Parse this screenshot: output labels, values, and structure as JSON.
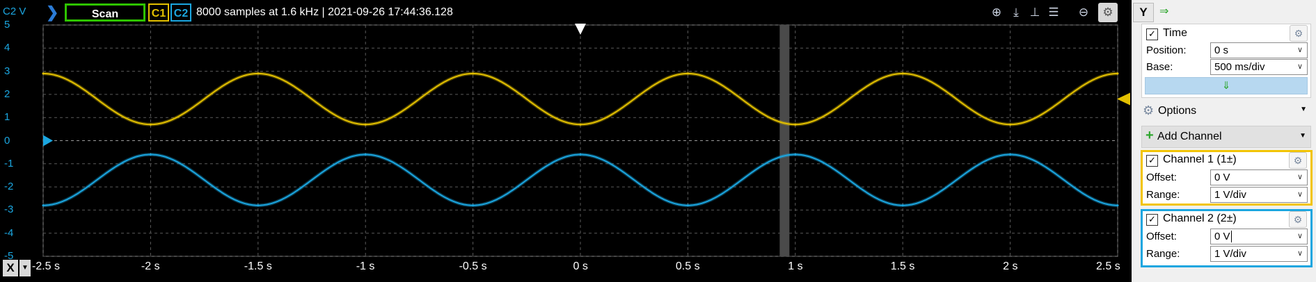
{
  "toolbar": {
    "y_axis_channel_label": "C2 V",
    "mode_button": "Scan",
    "channel1_chip": "C1",
    "channel2_chip": "C2",
    "status_text": "8000 samples at 1.6 kHz | 2021-09-26 17:44:36.128",
    "icons": [
      "zoom-in-icon",
      "cursor-down-icon",
      "cursor-horizontal-icon",
      "cursor-measure-icon",
      "zoom-out-icon",
      "settings-icon"
    ]
  },
  "x_axis": {
    "button_label": "X",
    "ticks": [
      "-2.5 s",
      "-2 s",
      "-1.5 s",
      "-1 s",
      "-0.5 s",
      "0 s",
      "0.5 s",
      "1 s",
      "1.5 s",
      "2 s",
      "2.5 s"
    ]
  },
  "y_axis": {
    "ticks": [
      "5",
      "4",
      "3",
      "2",
      "1",
      "0",
      "-1",
      "-2",
      "-3",
      "-4",
      "-5"
    ]
  },
  "colors": {
    "channel1": "#e3c000",
    "channel2": "#1ba6e0",
    "scan_border": "#2ec400",
    "grid": "#5a5a5a",
    "cursor_band": "#4a4a4a",
    "time_button": "#b7d8f0"
  },
  "panel": {
    "y_button": "Y",
    "y_arrow": "⇒",
    "time": {
      "title": "Time",
      "checked": true,
      "position_label": "Position:",
      "position_value": "0 s",
      "base_label": "Base:",
      "base_value": "500 ms/div",
      "apply_icon": "⇓"
    },
    "options": {
      "label": "Options"
    },
    "add_channel": {
      "label": "Add Channel"
    },
    "channel1": {
      "title": "Channel 1 (1±)",
      "checked": true,
      "offset_label": "Offset:",
      "offset_value": "0 V",
      "range_label": "Range:",
      "range_value": "1 V/div"
    },
    "channel2": {
      "title": "Channel 2 (2±)",
      "checked": true,
      "offset_label": "Offset:",
      "offset_value": "0 V",
      "range_label": "Range:",
      "range_value": "1 V/div"
    }
  },
  "chart_data": {
    "type": "line",
    "xlabel": "",
    "ylabel": "C2 V",
    "xlim": [
      -2.5,
      2.5
    ],
    "ylim": [
      -5,
      5
    ],
    "grid": true,
    "trigger_time": 0,
    "cursor_time": 0.95,
    "series": [
      {
        "name": "C1",
        "x": [
          -2.5,
          -2.0,
          -1.5,
          -1.0,
          -0.5,
          0.0,
          0.5,
          1.0,
          1.5,
          2.0,
          2.5
        ],
        "y": [
          2.9,
          0.7,
          2.9,
          0.7,
          2.9,
          0.7,
          2.9,
          0.7,
          2.9,
          0.7,
          2.9
        ],
        "period_s": 1.0,
        "max": 2.9,
        "min": 0.7,
        "peak_at": -2.5
      },
      {
        "name": "C2",
        "x": [
          -2.5,
          -2.0,
          -1.5,
          -1.0,
          -0.5,
          0.0,
          0.5,
          1.0,
          1.5,
          2.0,
          2.5
        ],
        "y": [
          -2.8,
          -0.6,
          -2.8,
          -0.6,
          -2.8,
          -0.6,
          -2.8,
          -0.6,
          -2.8,
          -0.6,
          -2.8
        ],
        "period_s": 1.0,
        "max": -0.6,
        "min": -2.8,
        "peak_at": -2.0
      }
    ]
  }
}
